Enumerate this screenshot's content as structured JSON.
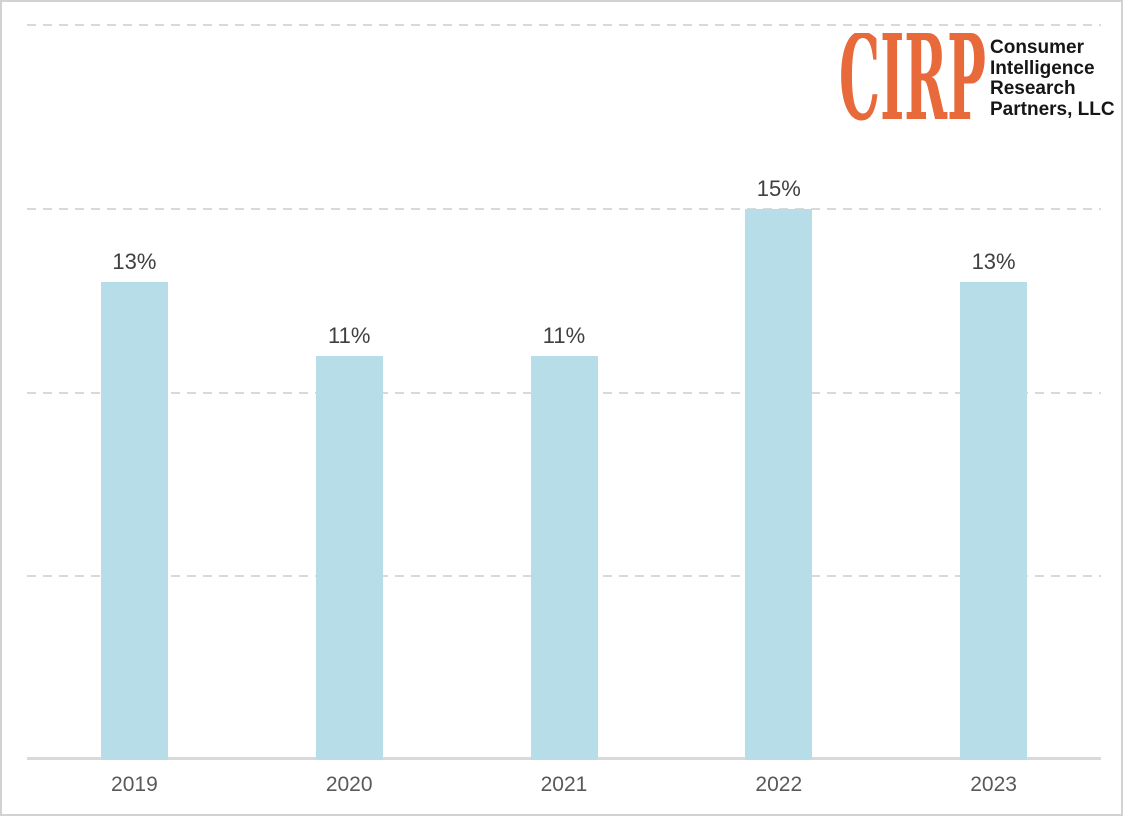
{
  "logo": {
    "mark": "CIRP",
    "lines": [
      "Consumer",
      "Intelligence",
      "Research",
      "Partners, LLC"
    ],
    "brand_color": "#E8693A",
    "text_color": "#161616"
  },
  "chart_data": {
    "type": "bar",
    "categories": [
      "2019",
      "2020",
      "2021",
      "2022",
      "2023"
    ],
    "values": [
      13,
      11,
      11,
      15,
      13
    ],
    "bar_labels": [
      "13%",
      "11%",
      "11%",
      "15%",
      "13%"
    ],
    "title": "",
    "xlabel": "",
    "ylabel": "",
    "ylim": [
      0,
      20
    ],
    "gridline_step": 5,
    "grid": "horizontal-dashed",
    "legend": "none",
    "bar_color": "#B7DEE8",
    "bar_label_color": "#404040",
    "axis_tick_color": "#595959",
    "gridline_color": "#D9D9D9"
  }
}
